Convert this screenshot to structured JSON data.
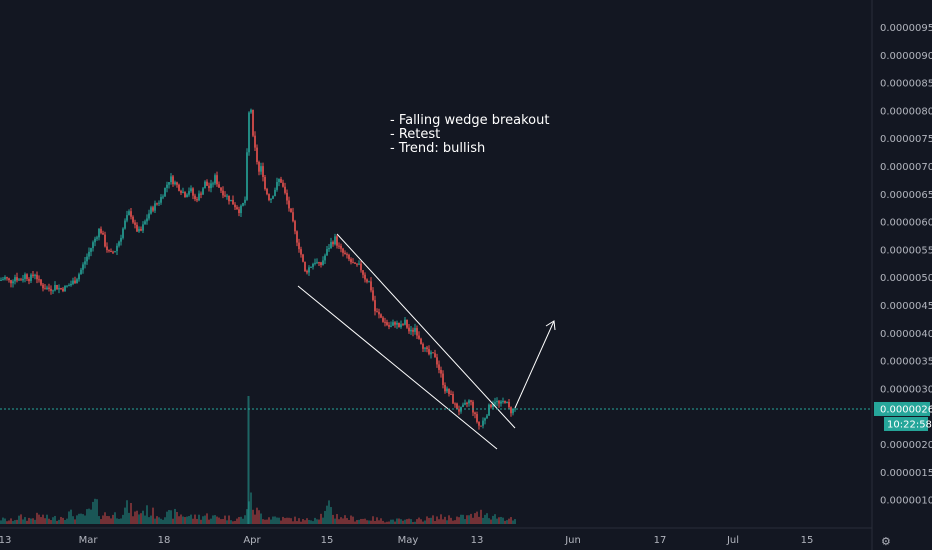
{
  "chart_data": {
    "type": "candlestick",
    "y_axis": {
      "ticks": [
        "0.00000950",
        "0.00000900",
        "0.00000850",
        "0.00000800",
        "0.00000750",
        "0.00000700",
        "0.00000650",
        "0.00000600",
        "0.00000550",
        "0.00000500",
        "0.00000450",
        "0.00000400",
        "0.00000350",
        "0.00000300",
        "0.00000200",
        "0.00000150",
        "0.00000100"
      ],
      "range": [
        5e-07,
        9.85e-06
      ],
      "position": "right"
    },
    "x_axis": {
      "ticks": [
        "13",
        "Mar",
        "18",
        "Apr",
        "15",
        "May",
        "13",
        "Jun",
        "17",
        "Jul",
        "15"
      ]
    },
    "current_price": {
      "value": "0.00000264",
      "countdown": "10:22:58",
      "color": "#26a69a"
    },
    "annotation": [
      "- Falling wedge breakout",
      "- Retest",
      "- Trend: bullish"
    ],
    "colors": {
      "up": "#26a69a",
      "down": "#ef5350",
      "background": "#131722",
      "drawing": "#ffffff"
    },
    "price_path": [
      [
        0,
        4.95e-06
      ],
      [
        5,
        5e-06
      ],
      [
        10,
        4.92e-06
      ],
      [
        15,
        5.02e-06
      ],
      [
        20,
        4.95e-06
      ],
      [
        25,
        5.05e-06
      ],
      [
        30,
        4.98e-06
      ],
      [
        35,
        5.08e-06
      ],
      [
        40,
        4.88e-06
      ],
      [
        45,
        4.82e-06
      ],
      [
        50,
        4.8e-06
      ],
      [
        55,
        4.85e-06
      ],
      [
        60,
        4.8e-06
      ],
      [
        65,
        4.82e-06
      ],
      [
        70,
        4.88e-06
      ],
      [
        75,
        4.95e-06
      ],
      [
        80,
        5.1e-06
      ],
      [
        85,
        5.3e-06
      ],
      [
        90,
        5.5e-06
      ],
      [
        95,
        5.7e-06
      ],
      [
        100,
        5.9e-06
      ],
      [
        105,
        5.6e-06
      ],
      [
        110,
        5.4e-06
      ],
      [
        115,
        5.5e-06
      ],
      [
        120,
        5.7e-06
      ],
      [
        125,
        6e-06
      ],
      [
        130,
        6.2e-06
      ],
      [
        135,
        5.9e-06
      ],
      [
        140,
        5.8e-06
      ],
      [
        145,
        6e-06
      ],
      [
        150,
        6.2e-06
      ],
      [
        155,
        6.3e-06
      ],
      [
        160,
        6.4e-06
      ],
      [
        165,
        6.6e-06
      ],
      [
        170,
        6.8e-06
      ],
      [
        175,
        6.7e-06
      ],
      [
        180,
        6.6e-06
      ],
      [
        185,
        6.5e-06
      ],
      [
        190,
        6.6e-06
      ],
      [
        195,
        6.4e-06
      ],
      [
        200,
        6.5e-06
      ],
      [
        205,
        6.7e-06
      ],
      [
        210,
        6.6e-06
      ],
      [
        215,
        6.8e-06
      ],
      [
        220,
        6.6e-06
      ],
      [
        225,
        6.5e-06
      ],
      [
        230,
        6.4e-06
      ],
      [
        235,
        6.3e-06
      ],
      [
        240,
        6.2e-06
      ],
      [
        245,
        6.4e-06
      ],
      [
        248,
        7.6e-06
      ],
      [
        250,
        8.3e-06
      ],
      [
        253,
        7.5e-06
      ],
      [
        256,
        7.2e-06
      ],
      [
        259,
        6.9e-06
      ],
      [
        262,
        7e-06
      ],
      [
        265,
        6.6e-06
      ],
      [
        270,
        6.4e-06
      ],
      [
        275,
        6.6e-06
      ],
      [
        280,
        6.8e-06
      ],
      [
        285,
        6.5e-06
      ],
      [
        290,
        6.2e-06
      ],
      [
        295,
        5.8e-06
      ],
      [
        300,
        5.5e-06
      ],
      [
        305,
        5.1e-06
      ],
      [
        310,
        5.2e-06
      ],
      [
        315,
        5.3e-06
      ],
      [
        320,
        5.2e-06
      ],
      [
        325,
        5.4e-06
      ],
      [
        330,
        5.6e-06
      ],
      [
        335,
        5.7e-06
      ],
      [
        340,
        5.5e-06
      ],
      [
        345,
        5.4e-06
      ],
      [
        350,
        5.3e-06
      ],
      [
        355,
        5.2e-06
      ],
      [
        360,
        5.2e-06
      ],
      [
        365,
        5e-06
      ],
      [
        370,
        4.9e-06
      ],
      [
        375,
        4.4e-06
      ],
      [
        380,
        4.3e-06
      ],
      [
        385,
        4.2e-06
      ],
      [
        390,
        4.1e-06
      ],
      [
        395,
        4.2e-06
      ],
      [
        400,
        4.1e-06
      ],
      [
        405,
        4.2e-06
      ],
      [
        410,
        4e-06
      ],
      [
        415,
        4.1e-06
      ],
      [
        420,
        3.9e-06
      ],
      [
        425,
        3.7e-06
      ],
      [
        430,
        3.6e-06
      ],
      [
        435,
        3.6e-06
      ],
      [
        440,
        3.3e-06
      ],
      [
        445,
        3e-06
      ],
      [
        450,
        2.9e-06
      ],
      [
        455,
        2.7e-06
      ],
      [
        460,
        2.6e-06
      ],
      [
        465,
        2.7e-06
      ],
      [
        470,
        2.8e-06
      ],
      [
        475,
        2.5e-06
      ],
      [
        480,
        2.3e-06
      ],
      [
        485,
        2.5e-06
      ],
      [
        490,
        2.7e-06
      ],
      [
        495,
        2.8e-06
      ],
      [
        500,
        2.7e-06
      ],
      [
        505,
        2.8e-06
      ],
      [
        510,
        2.6e-06
      ],
      [
        515,
        2.64e-06
      ]
    ],
    "volume_path": [
      [
        0,
        0.15
      ],
      [
        10,
        0.1
      ],
      [
        20,
        0.2
      ],
      [
        30,
        0.15
      ],
      [
        40,
        0.25
      ],
      [
        50,
        0.15
      ],
      [
        60,
        0.2
      ],
      [
        70,
        0.3
      ],
      [
        80,
        0.2
      ],
      [
        90,
        0.35
      ],
      [
        95,
        0.6
      ],
      [
        100,
        0.3
      ],
      [
        110,
        0.25
      ],
      [
        120,
        0.3
      ],
      [
        128,
        0.5
      ],
      [
        135,
        0.3
      ],
      [
        145,
        0.4
      ],
      [
        155,
        0.3
      ],
      [
        165,
        0.25
      ],
      [
        175,
        0.3
      ],
      [
        185,
        0.25
      ],
      [
        195,
        0.2
      ],
      [
        205,
        0.25
      ],
      [
        215,
        0.2
      ],
      [
        225,
        0.2
      ],
      [
        235,
        0.15
      ],
      [
        245,
        0.2
      ],
      [
        248,
        0.9
      ],
      [
        250,
        0.7
      ],
      [
        255,
        0.4
      ],
      [
        260,
        0.3
      ],
      [
        265,
        0.2
      ],
      [
        275,
        0.2
      ],
      [
        285,
        0.15
      ],
      [
        295,
        0.15
      ],
      [
        305,
        0.1
      ],
      [
        315,
        0.2
      ],
      [
        325,
        0.3
      ],
      [
        328,
        0.5
      ],
      [
        335,
        0.25
      ],
      [
        345,
        0.2
      ],
      [
        355,
        0.15
      ],
      [
        365,
        0.15
      ],
      [
        375,
        0.15
      ],
      [
        385,
        0.1
      ],
      [
        395,
        0.12
      ],
      [
        405,
        0.1
      ],
      [
        415,
        0.12
      ],
      [
        425,
        0.15
      ],
      [
        435,
        0.18
      ],
      [
        445,
        0.2
      ],
      [
        455,
        0.18
      ],
      [
        465,
        0.2
      ],
      [
        475,
        0.25
      ],
      [
        485,
        0.35
      ],
      [
        490,
        0.25
      ],
      [
        500,
        0.2
      ],
      [
        510,
        0.15
      ],
      [
        515,
        0.1
      ]
    ]
  }
}
